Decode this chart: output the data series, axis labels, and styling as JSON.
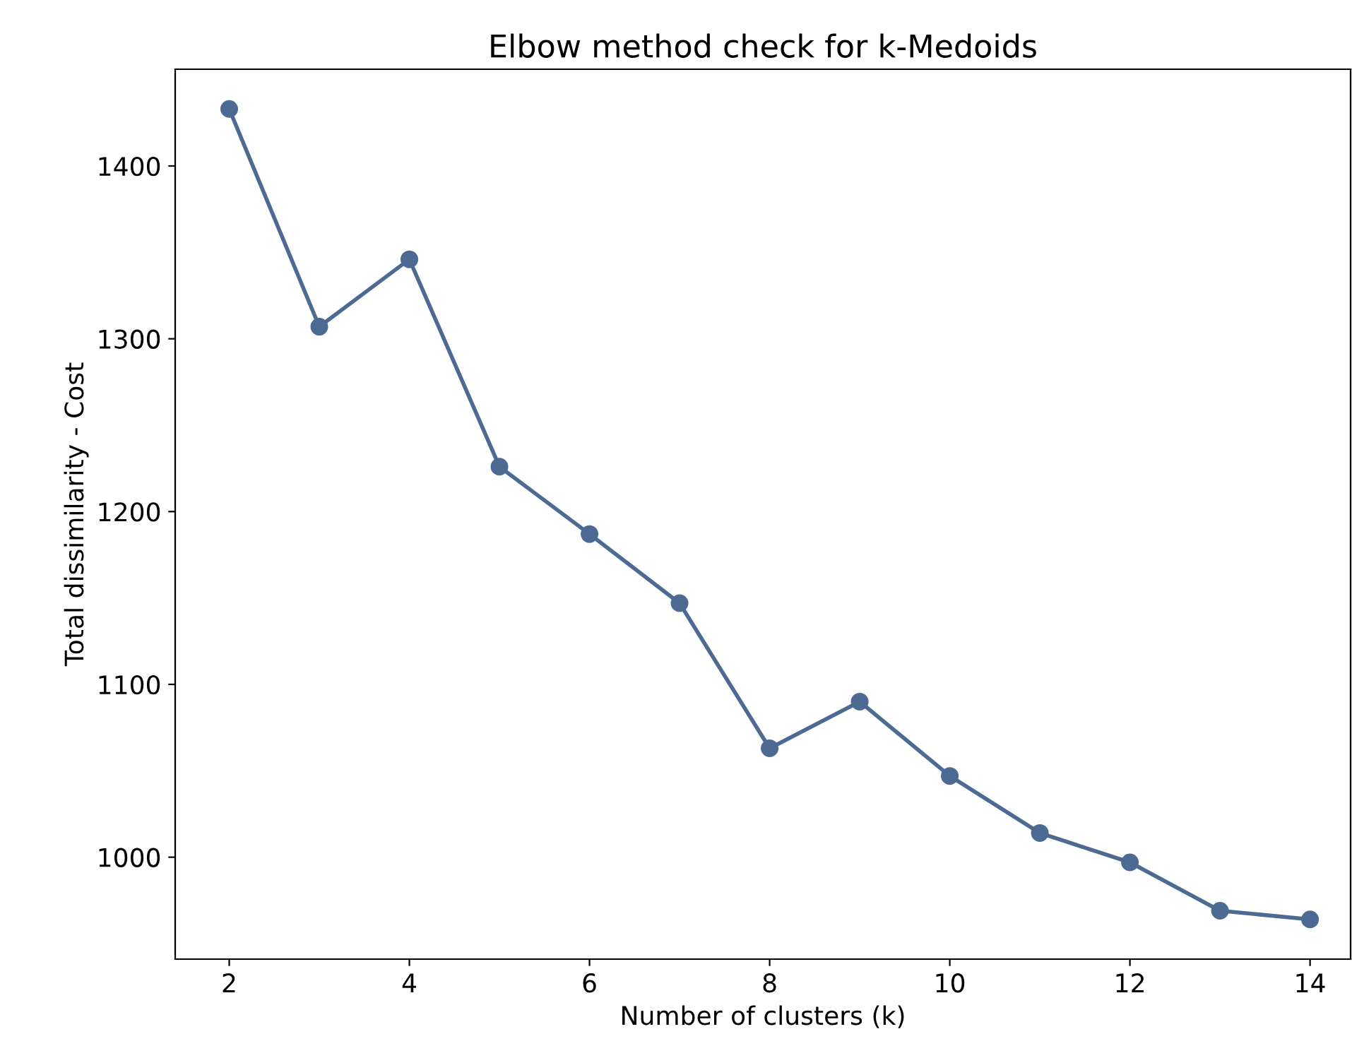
{
  "chart_data": {
    "type": "line",
    "title": "Elbow method check for k-Medoids",
    "xlabel": "Number of clusters (k)",
    "ylabel": "Total dissimilarity - Cost",
    "x": [
      2,
      3,
      4,
      5,
      6,
      7,
      8,
      9,
      10,
      11,
      12,
      13,
      14
    ],
    "series": [
      {
        "color": "#4c6a92",
        "values": [
          1433,
          1307,
          1346,
          1226,
          1187,
          1147,
          1063,
          1090,
          1047,
          1014,
          997,
          969,
          964
        ]
      }
    ],
    "xlim": [
      1.4,
      14.45
    ],
    "ylim": [
      941,
      1456
    ],
    "xticks": [
      2,
      4,
      6,
      8,
      10,
      12,
      14
    ],
    "yticks": [
      1000,
      1100,
      1200,
      1300,
      1400
    ],
    "marker": "circle",
    "line_style": "solid",
    "grid": false,
    "legend": false
  }
}
